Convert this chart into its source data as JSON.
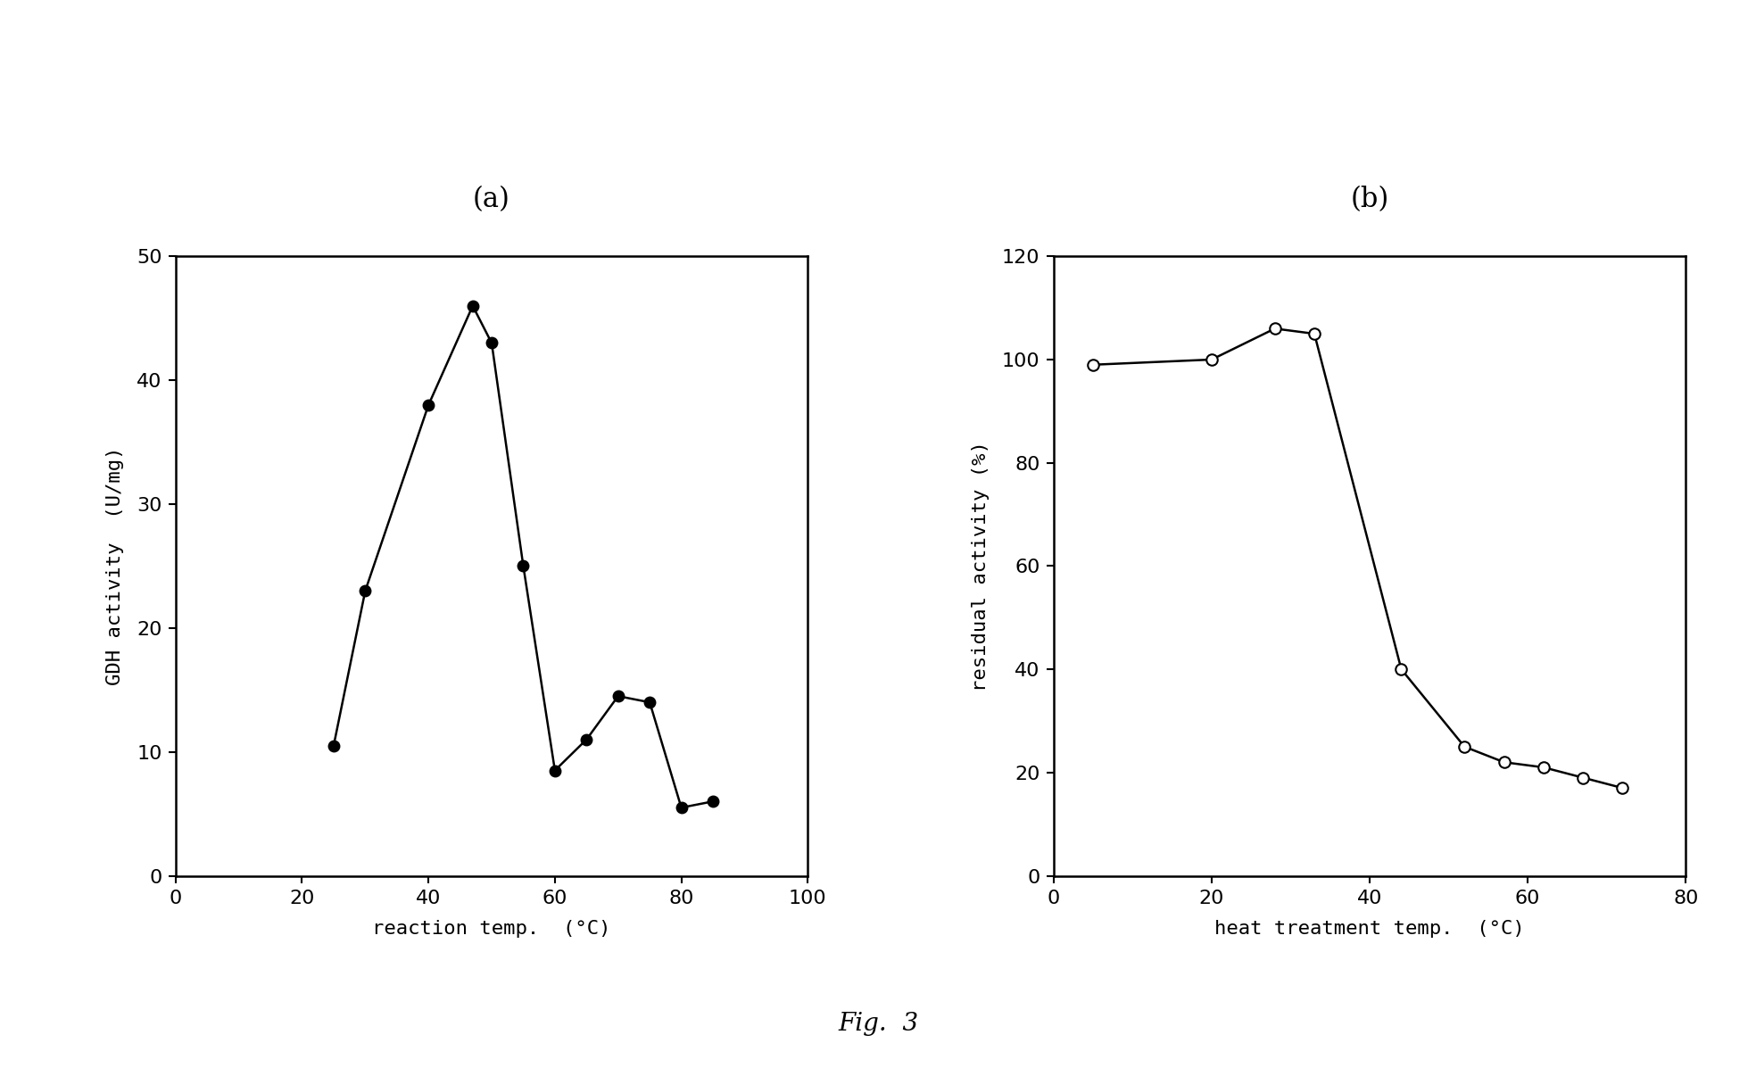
{
  "panel_a": {
    "title": "(a)",
    "x": [
      25,
      30,
      40,
      47,
      50,
      55,
      60,
      65,
      70,
      75,
      80,
      85
    ],
    "y": [
      10.5,
      23,
      38,
      46,
      43,
      25,
      8.5,
      11,
      14.5,
      14,
      5.5,
      6
    ],
    "xlabel": "reaction temp.  (°C)",
    "ylabel": "GDH activity  (U/mg)",
    "xlim": [
      0,
      100
    ],
    "ylim": [
      0,
      50
    ],
    "xticks": [
      0,
      20,
      40,
      60,
      80,
      100
    ],
    "yticks": [
      0,
      10,
      20,
      30,
      40,
      50
    ],
    "marker": "o",
    "markersize": 9,
    "marker_filled": true,
    "linewidth": 1.8
  },
  "panel_b": {
    "title": "(b)",
    "x": [
      5,
      20,
      28,
      33,
      44,
      52,
      57,
      62,
      67,
      72
    ],
    "y": [
      99,
      100,
      106,
      105,
      40,
      25,
      22,
      21,
      19,
      17
    ],
    "xlabel": "heat treatment temp.  (°C)",
    "ylabel": "residual activity (%)",
    "xlim": [
      0,
      80
    ],
    "ylim": [
      0,
      120
    ],
    "xticks": [
      0,
      20,
      40,
      60,
      80
    ],
    "yticks": [
      0,
      20,
      40,
      60,
      80,
      100,
      120
    ],
    "marker": "o",
    "markersize": 9,
    "marker_filled": false,
    "linewidth": 1.8
  },
  "fig_label": "Fig.  3",
  "background_color": "#ffffff",
  "line_color": "#000000",
  "title_fontsize": 22,
  "label_fontsize": 16,
  "tick_fontsize": 16,
  "fig_label_fontsize": 20
}
